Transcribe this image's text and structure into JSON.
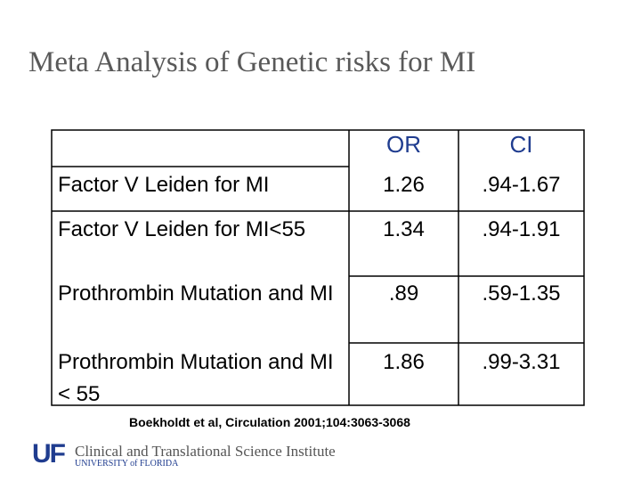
{
  "title": "Meta Analysis of Genetic risks for MI",
  "table": {
    "header": [
      "OR",
      "CI"
    ],
    "rows": [
      [
        "Factor V Leiden for MI",
        "1.26",
        ".94-1.67"
      ],
      [
        "Factor V Leiden for MI<55",
        "1.34",
        ".94-1.91"
      ],
      [
        "Prothrombin Mutation and MI",
        ".89",
        ".59-1.35"
      ],
      [
        "Prothrombin Mutation and MI < 55",
        "1.86",
        ".99-3.31"
      ]
    ]
  },
  "citation": "Boekholdt et al, Circulation 2001;104:3063-3068",
  "footer": {
    "logo": "UF",
    "institute": "Clinical and Translational Science Institute",
    "university": "UNIVERSITY of FLORIDA"
  }
}
